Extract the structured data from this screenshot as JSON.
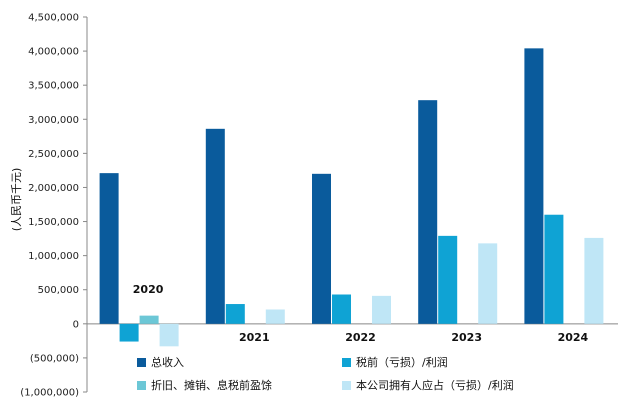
{
  "chart_data": {
    "type": "bar",
    "categories": [
      "2020",
      "2021",
      "2022",
      "2023",
      "2024"
    ],
    "series": [
      {
        "name": "总收入",
        "color": "#0a5b9c",
        "values": [
          2210000,
          2860000,
          2200000,
          3280000,
          4040000
        ]
      },
      {
        "name": "税前（亏损）/利润",
        "color": "#0fa3d4",
        "values": [
          -260000,
          290000,
          430000,
          1290000,
          1600000
        ]
      },
      {
        "name": "折旧、摊销、息税前盈馀",
        "color": "#6cc7d6",
        "values": [
          120000,
          0,
          0,
          0,
          0
        ]
      },
      {
        "name": "本公司拥有人应占（亏损）/利润",
        "color": "#bfe6f6",
        "values": [
          -330000,
          210000,
          410000,
          1180000,
          1260000
        ]
      }
    ],
    "ylabel": "(人民币千元)",
    "ylim": [
      -1000000,
      4500000
    ],
    "yticks": [
      -1000000,
      -500000,
      0,
      500000,
      1000000,
      1500000,
      2000000,
      2500000,
      3000000,
      3500000,
      4000000,
      4500000
    ],
    "ytick_labels": [
      "(1,000,000)",
      "(500,000)",
      "0",
      "500,000",
      "1,000,000",
      "1,500,000",
      "2,000,000",
      "2,500,000",
      "3,000,000",
      "3,500,000",
      "4,000,000",
      "4,500,000"
    ],
    "grid": false,
    "legend": "bottom"
  }
}
